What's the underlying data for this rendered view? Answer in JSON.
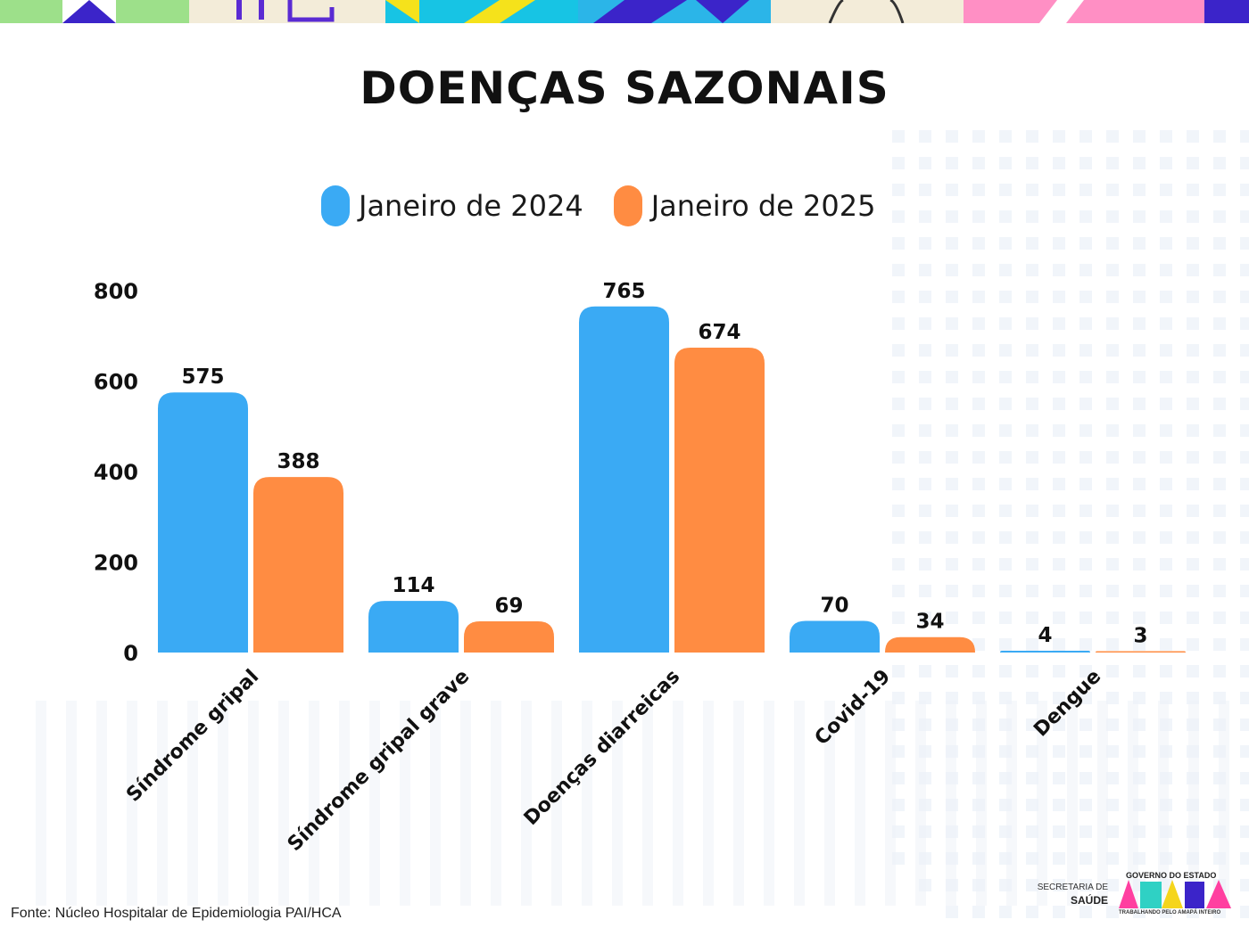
{
  "title": "DOENÇAS SAZONAIS",
  "legend": [
    {
      "label": "Janeiro de 2024",
      "color": "#3aaaf4"
    },
    {
      "label": "Janeiro de 2025",
      "color": "#ff8c42"
    }
  ],
  "source": "Fonte: Núcleo Hospitalar de Epidemiologia PAI/HCA",
  "logo": {
    "secretaria_line1": "SECRETARIA DE",
    "secretaria_line2": "SAÚDE",
    "governo": "GOVERNO DO ESTADO",
    "wordmark": "AMAPÁ",
    "tagline": "TRABALHANDO PELO AMAPÁ INTEIRO"
  },
  "chart_data": {
    "type": "bar",
    "title": "DOENÇAS SAZONAIS",
    "categories": [
      "Síndrome gripal",
      "Síndrome gripal grave",
      "Doenças diarreicas",
      "Covid-19",
      "Dengue"
    ],
    "series": [
      {
        "name": "Janeiro de 2024",
        "values": [
          575,
          114,
          765,
          70,
          4
        ],
        "color": "#3aaaf4"
      },
      {
        "name": "Janeiro de 2025",
        "values": [
          388,
          69,
          674,
          34,
          3
        ],
        "color": "#ff8c42"
      }
    ],
    "yticks": [
      0,
      200,
      400,
      600,
      800
    ],
    "ylim": [
      0,
      800
    ],
    "grid": false,
    "legend_position": "top-center",
    "data_labels": true
  }
}
